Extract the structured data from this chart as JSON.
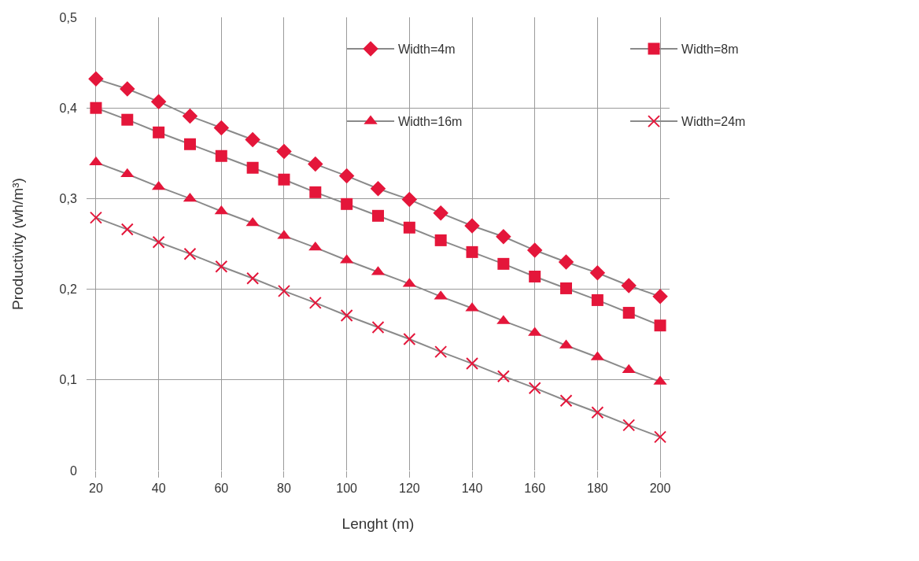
{
  "chart_data": {
    "type": "line",
    "xlabel": "Lenght (m)",
    "ylabel": "Productivity (wh/m³)",
    "x": [
      20,
      30,
      40,
      50,
      60,
      70,
      80,
      90,
      100,
      110,
      120,
      130,
      140,
      150,
      160,
      170,
      180,
      190,
      200
    ],
    "series": [
      {
        "name": "Width=4m",
        "color": "#e4163a",
        "marker": "diamond",
        "values": [
          0.432,
          0.421,
          0.407,
          0.391,
          0.378,
          0.365,
          0.352,
          0.338,
          0.325,
          0.311,
          0.299,
          0.284,
          0.27,
          0.258,
          0.243,
          0.23,
          0.218,
          0.204,
          0.192
        ]
      },
      {
        "name": "Width=8m",
        "color": "#e4163a",
        "marker": "square",
        "values": [
          0.4,
          0.387,
          0.373,
          0.36,
          0.347,
          0.334,
          0.321,
          0.307,
          0.294,
          0.281,
          0.268,
          0.254,
          0.241,
          0.228,
          0.214,
          0.201,
          0.188,
          0.174,
          0.16
        ]
      },
      {
        "name": "Width=16m",
        "color": "#e4163a",
        "marker": "triangle",
        "values": [
          0.34,
          0.327,
          0.313,
          0.3,
          0.286,
          0.273,
          0.259,
          0.246,
          0.232,
          0.219,
          0.206,
          0.192,
          0.179,
          0.165,
          0.152,
          0.138,
          0.125,
          0.111,
          0.098
        ]
      },
      {
        "name": "Width=24m",
        "color": "#e4163a",
        "marker": "cross",
        "values": [
          0.279,
          0.266,
          0.252,
          0.239,
          0.225,
          0.212,
          0.198,
          0.185,
          0.171,
          0.158,
          0.145,
          0.131,
          0.118,
          0.104,
          0.091,
          0.077,
          0.064,
          0.05,
          0.037
        ]
      }
    ],
    "xlim": [
      17,
      203
    ],
    "xticks": [
      20,
      40,
      60,
      80,
      100,
      120,
      140,
      160,
      180,
      200
    ],
    "ylim": [
      0,
      0.5
    ],
    "yticks": [
      0,
      {
        "value": 0.1,
        "label": "0,1"
      },
      {
        "value": 0.2,
        "label": "0,2"
      },
      {
        "value": 0.3,
        "label": "0,3"
      },
      {
        "value": 0.4,
        "label": "0,4"
      },
      {
        "value": 0.5,
        "label": "0,5"
      }
    ],
    "grid": true,
    "legend": "top right",
    "line_style": "solid"
  }
}
